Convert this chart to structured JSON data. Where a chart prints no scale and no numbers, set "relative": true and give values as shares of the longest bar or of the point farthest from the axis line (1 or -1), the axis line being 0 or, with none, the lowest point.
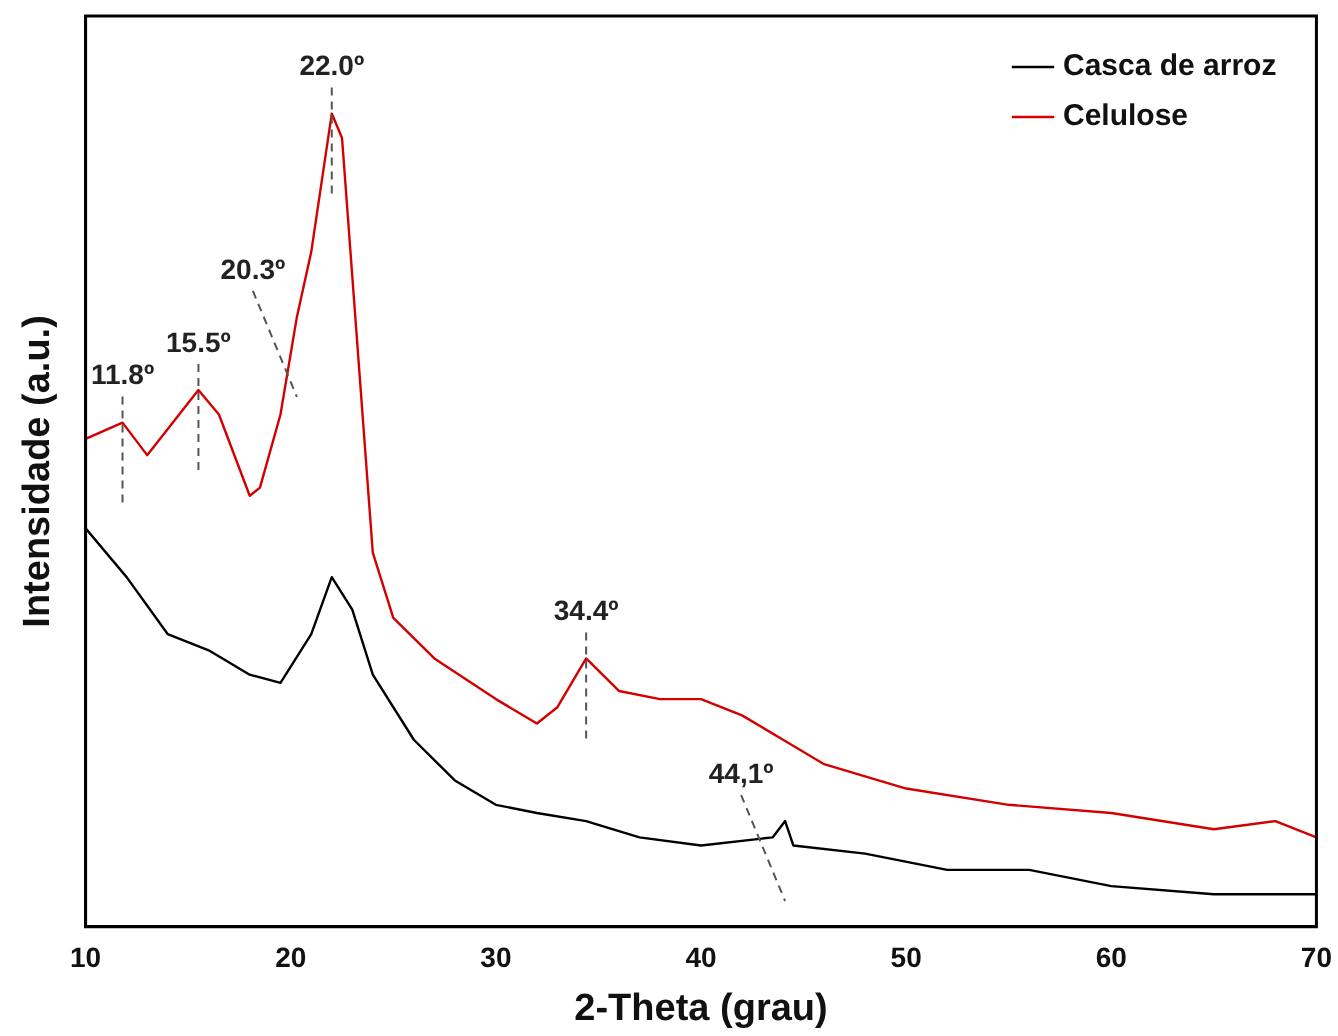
{
  "chart_data": {
    "type": "line",
    "relative": true,
    "xlabel": "2-Theta (grau)",
    "ylabel": "Intensidade (a.u.)",
    "xlim": [
      10,
      70
    ],
    "xticks": [
      10,
      20,
      30,
      40,
      50,
      60,
      70
    ],
    "legend": "top right",
    "grid": false,
    "marker": "none",
    "line_style": "solid",
    "series": [
      {
        "name": "Casca de arroz",
        "color": "#000000",
        "x": [
          10,
          12,
          14,
          16,
          18,
          19.5,
          21,
          22,
          23,
          24,
          26,
          28,
          30,
          32,
          34.4,
          37,
          40,
          43.5,
          44.1,
          44.5,
          48,
          52,
          56,
          60,
          65,
          70
        ],
        "values": [
          0.49,
          0.43,
          0.36,
          0.34,
          0.31,
          0.3,
          0.36,
          0.43,
          0.39,
          0.31,
          0.23,
          0.18,
          0.15,
          0.14,
          0.13,
          0.11,
          0.1,
          0.11,
          0.13,
          0.1,
          0.09,
          0.07,
          0.07,
          0.05,
          0.04,
          0.04
        ]
      },
      {
        "name": "Celulose",
        "color": "#d40000",
        "x": [
          10,
          11.8,
          13,
          15.5,
          16.5,
          18,
          18.5,
          19.5,
          20.3,
          21,
          22,
          22.5,
          23,
          24,
          25,
          27,
          30,
          32,
          33,
          34.4,
          36,
          38,
          40,
          42,
          44,
          46,
          50,
          55,
          60,
          65,
          68,
          70
        ],
        "values": [
          0.6,
          0.62,
          0.58,
          0.66,
          0.63,
          0.53,
          0.54,
          0.63,
          0.75,
          0.83,
          1.0,
          0.97,
          0.8,
          0.46,
          0.38,
          0.33,
          0.28,
          0.25,
          0.27,
          0.33,
          0.29,
          0.28,
          0.28,
          0.26,
          0.23,
          0.2,
          0.17,
          0.15,
          0.14,
          0.12,
          0.13,
          0.11
        ]
      }
    ],
    "annotations": [
      {
        "text": "11.8º",
        "x": 11.8,
        "y": 0.62
      },
      {
        "text": "15.5º",
        "x": 15.5,
        "y": 0.66
      },
      {
        "text": "20.3º",
        "x": 20.3,
        "y": 0.75
      },
      {
        "text": "22.0º",
        "x": 22.0,
        "y": 1.0
      },
      {
        "text": "34.4º",
        "x": 34.4,
        "y": 0.33
      },
      {
        "text": "44,1º",
        "x": 44.1,
        "y": 0.13
      }
    ]
  }
}
